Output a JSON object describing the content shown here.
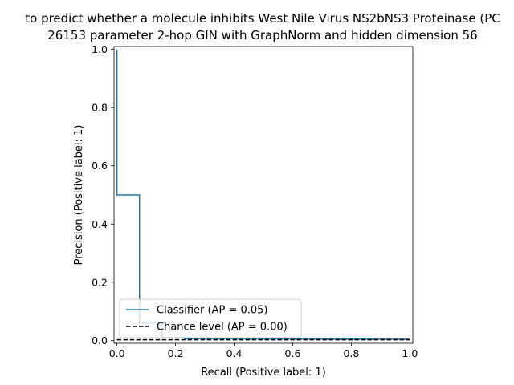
{
  "chart_data": {
    "type": "line",
    "title_lines": [
      "to predict whether a molecule inhibits West Nile Virus NS2bNS3 Proteinase (PC",
      "26153 parameter 2-hop GIN with GraphNorm and hidden dimension 56"
    ],
    "xlabel": "Recall (Positive label: 1)",
    "ylabel": "Precision (Positive label: 1)",
    "xlim": [
      -0.01,
      1.01
    ],
    "ylim": [
      -0.01,
      1.01
    ],
    "xticks": [
      0.0,
      0.2,
      0.4,
      0.6,
      0.8,
      1.0
    ],
    "xtick_labels": [
      "0.0",
      "0.2",
      "0.4",
      "0.6",
      "0.8",
      "1.0"
    ],
    "yticks": [
      0.0,
      0.2,
      0.4,
      0.6,
      0.8,
      1.0
    ],
    "ytick_labels": [
      "0.0",
      "0.2",
      "0.4",
      "0.6",
      "0.8",
      "1.0"
    ],
    "grid": false,
    "legend_position": "lower-left",
    "series": [
      {
        "name": "Classifier (AP = 0.05)",
        "color": "#1f77b4",
        "style": "solid",
        "drawstyle": "steps",
        "points": [
          [
            0.0,
            1.0
          ],
          [
            0.0,
            0.5
          ],
          [
            0.077,
            0.5
          ],
          [
            0.077,
            0.06
          ],
          [
            0.154,
            0.06
          ],
          [
            0.154,
            0.01
          ],
          [
            0.23,
            0.01
          ],
          [
            0.23,
            0.006
          ],
          [
            1.0,
            0.004
          ]
        ]
      },
      {
        "name": "Chance level (AP = 0.00)",
        "color": "#000000",
        "style": "dashed",
        "points": [
          [
            0.0,
            0.002
          ],
          [
            1.0,
            0.002
          ]
        ]
      }
    ]
  }
}
